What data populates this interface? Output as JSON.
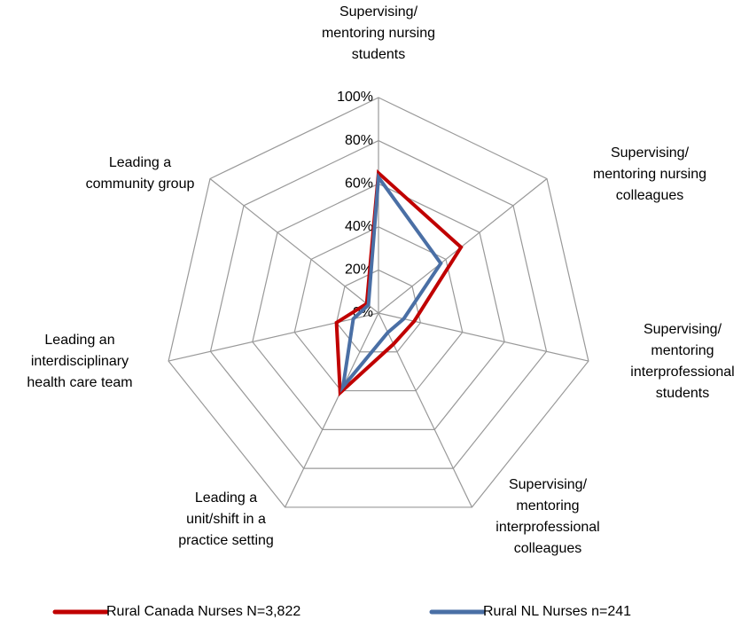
{
  "chart_data": {
    "type": "radar",
    "categories": [
      "Supervising/ mentoring nursing students",
      "Supervising/ mentoring nursing colleagues",
      "Supervising/ mentoring interprofessional students",
      "Supervising/ mentoring interprofessional colleagues",
      "Leading a unit/shift in a practice setting",
      "Leading an interdisciplinary health care team",
      "Leading a community group"
    ],
    "series": [
      {
        "name": "Rural Canada Nurses N=3,822",
        "color": "#c00000",
        "values": [
          65,
          49,
          17,
          16,
          41,
          20,
          7
        ]
      },
      {
        "name": "Rural NL Nurses n=241",
        "color": "#4a6fa5",
        "values": [
          63,
          37,
          12,
          10,
          38,
          12,
          6
        ]
      }
    ],
    "ylim": [
      0,
      100
    ],
    "yticks": [
      {
        "value": 0,
        "label": "0%"
      },
      {
        "value": 20,
        "label": "20%"
      },
      {
        "value": 40,
        "label": "40%"
      },
      {
        "value": 60,
        "label": "60%"
      },
      {
        "value": 80,
        "label": "80%"
      },
      {
        "value": 100,
        "label": "100%"
      }
    ],
    "grid": true,
    "legend": "bottom"
  }
}
